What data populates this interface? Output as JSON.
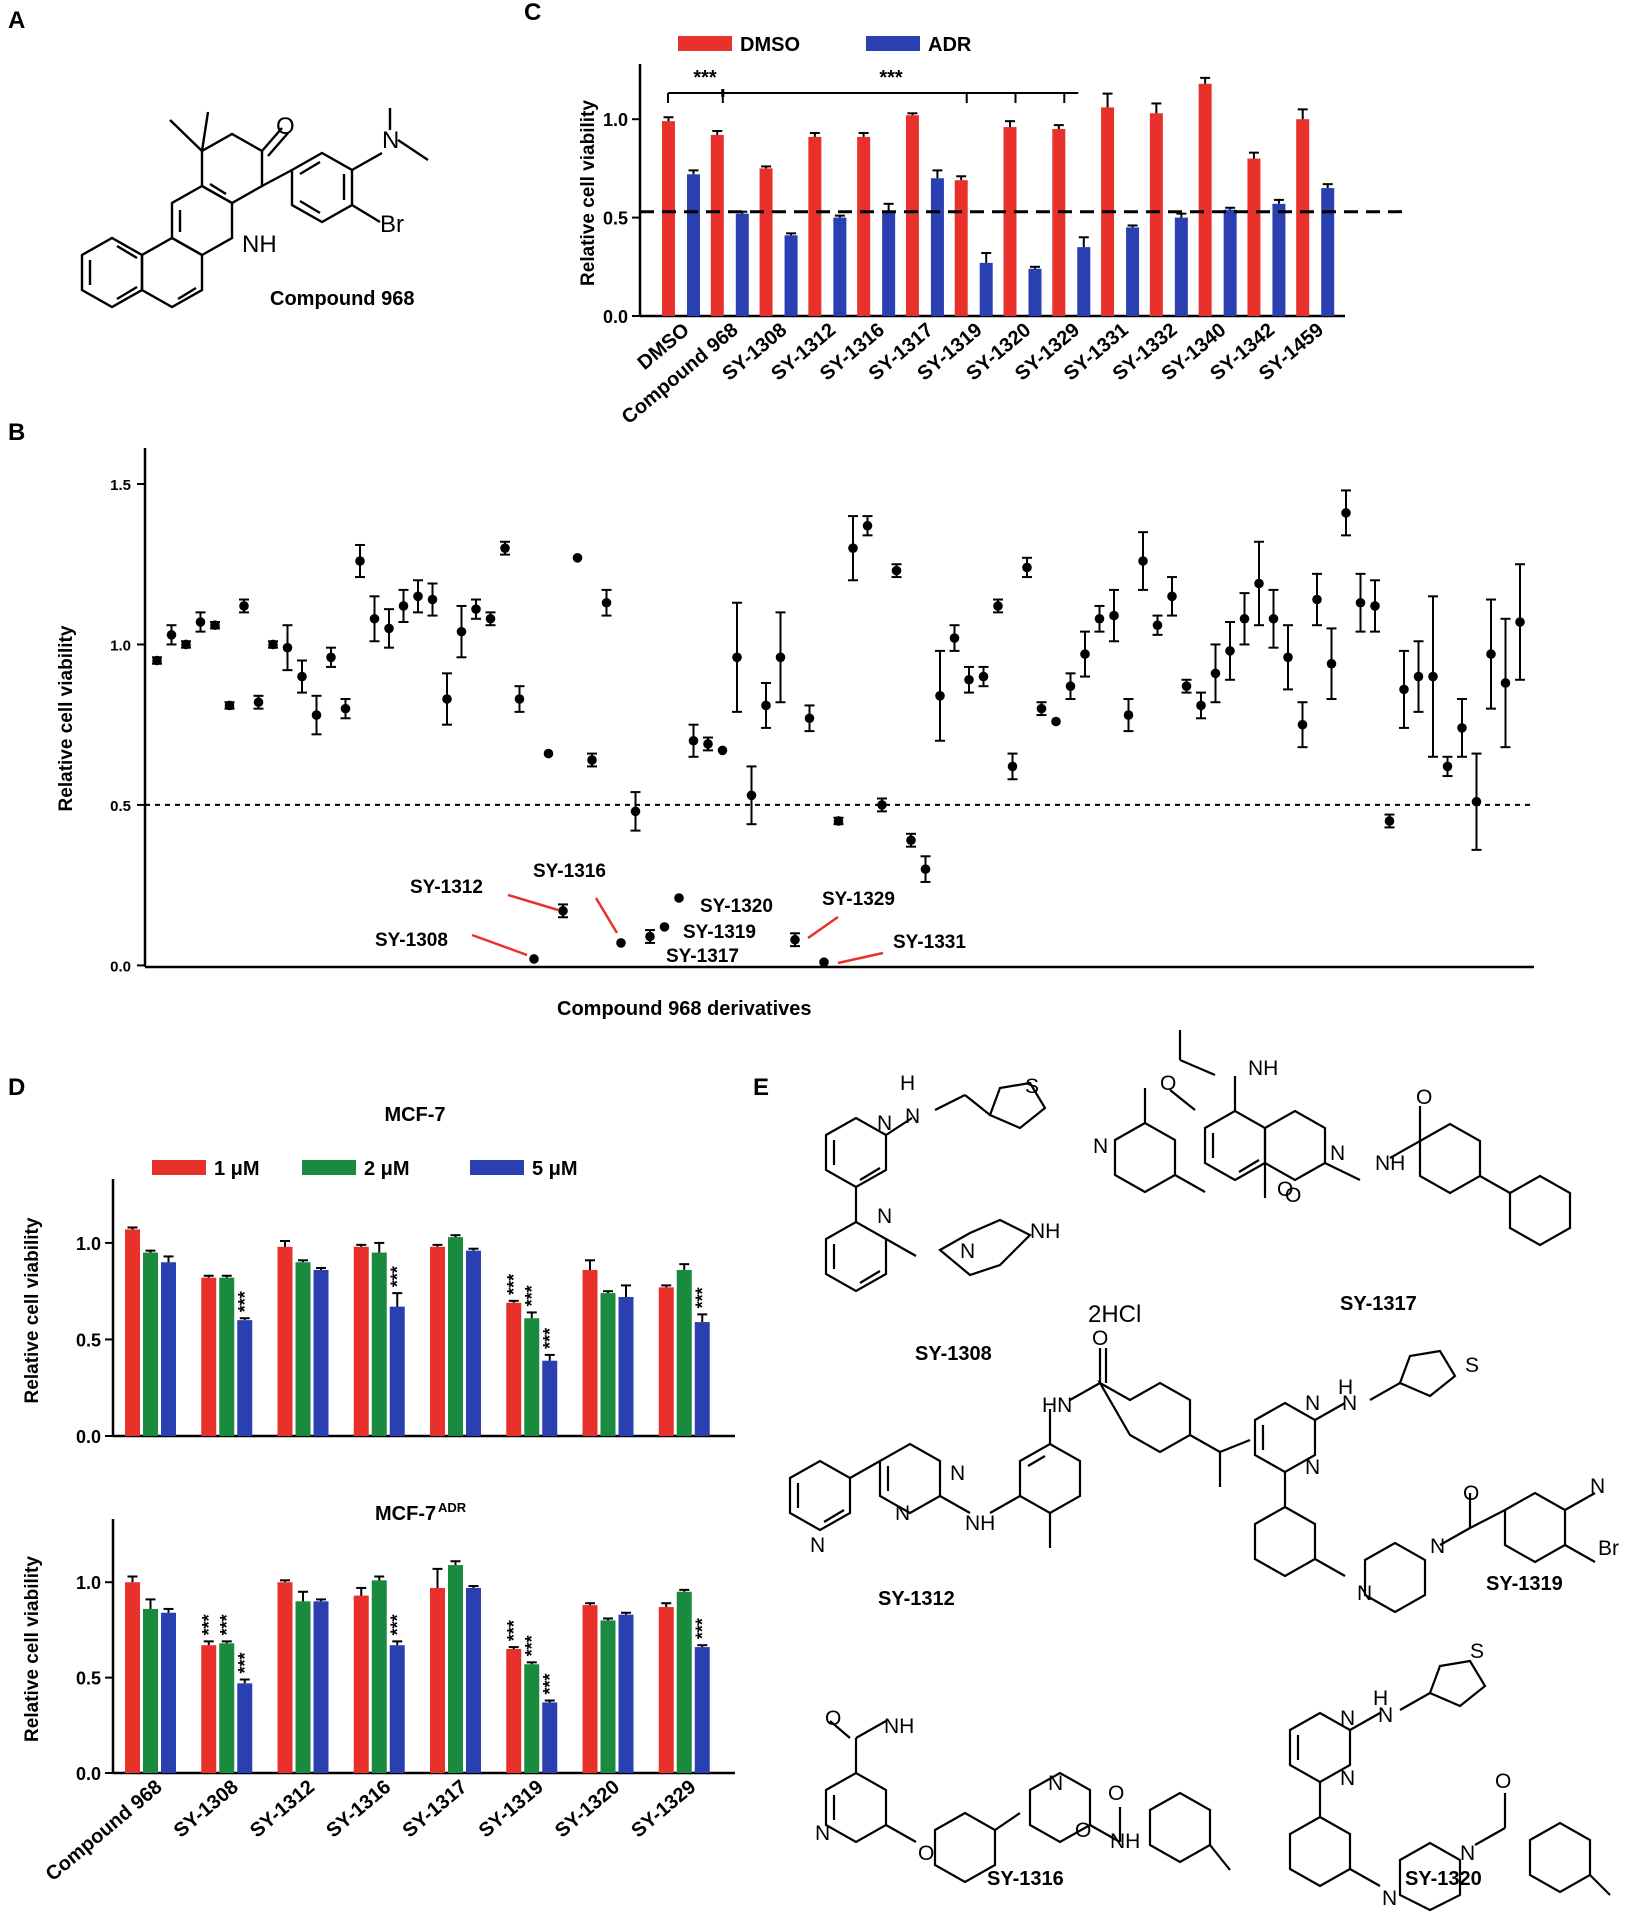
{
  "panels": {
    "A": {
      "letter": "A",
      "caption": "Compound 968",
      "atoms": [
        "O",
        "N",
        "Br",
        "NH"
      ]
    },
    "B": {
      "letter": "B",
      "caption": "Compound 968 derivatives",
      "callouts": [
        "SY-1308",
        "SY-1312",
        "SY-1316",
        "SY-1317",
        "SY-1319",
        "SY-1320",
        "SY-1329",
        "SY-1331"
      ]
    },
    "C": {
      "letter": "C"
    },
    "D": {
      "letter": "D",
      "legend": [
        "1 μM",
        "2 μM",
        "5 μM"
      ]
    },
    "E": {
      "letter": "E",
      "salt": "2HCl",
      "compounds": [
        "SY-1308",
        "SY-1317",
        "SY-1312",
        "SY-1319",
        "SY-1316",
        "SY-1320"
      ],
      "atoms": [
        "N",
        "NH",
        "S",
        "O",
        "H",
        "Br",
        "HN"
      ]
    }
  },
  "chart_data": [
    {
      "id": "B",
      "type": "scatter",
      "xlabel": "Compound 968 derivatives",
      "ylabel": "Relative cell viability",
      "ylim": [
        0,
        1.5
      ],
      "yticks": [
        "0.0",
        "0.5",
        "1.0",
        "1.5"
      ],
      "reference_line": 0.5,
      "points": [
        [
          1,
          0.95,
          0.01
        ],
        [
          2,
          1.03,
          0.03
        ],
        [
          3,
          1.0,
          0.01
        ],
        [
          4,
          1.07,
          0.03
        ],
        [
          5,
          1.06,
          0.01
        ],
        [
          6,
          0.81,
          0.01
        ],
        [
          7,
          1.12,
          0.02
        ],
        [
          8,
          0.82,
          0.02
        ],
        [
          9,
          1.0,
          0.01
        ],
        [
          10,
          0.99,
          0.07
        ],
        [
          11,
          0.9,
          0.05
        ],
        [
          12,
          0.78,
          0.06
        ],
        [
          13,
          0.96,
          0.03
        ],
        [
          14,
          0.8,
          0.03
        ],
        [
          15,
          1.26,
          0.05
        ],
        [
          16,
          1.08,
          0.07
        ],
        [
          17,
          1.05,
          0.06
        ],
        [
          18,
          1.12,
          0.05
        ],
        [
          19,
          1.15,
          0.05
        ],
        [
          20,
          1.14,
          0.05
        ],
        [
          21,
          0.83,
          0.08
        ],
        [
          22,
          1.04,
          0.08
        ],
        [
          23,
          1.11,
          0.03
        ],
        [
          24,
          1.08,
          0.02
        ],
        [
          25,
          1.3,
          0.02
        ],
        [
          26,
          0.83,
          0.04
        ],
        [
          27,
          0.02,
          0.0
        ],
        [
          28,
          0.66,
          0.0
        ],
        [
          29,
          0.17,
          0.02
        ],
        [
          30,
          1.27,
          0.0
        ],
        [
          31,
          0.64,
          0.02
        ],
        [
          32,
          1.13,
          0.04
        ],
        [
          33,
          0.07,
          0.0
        ],
        [
          34,
          0.48,
          0.06
        ],
        [
          35,
          0.09,
          0.02
        ],
        [
          36,
          0.12,
          0.0
        ],
        [
          37,
          0.21,
          0.0
        ],
        [
          38,
          0.7,
          0.05
        ],
        [
          39,
          0.69,
          0.02
        ],
        [
          40,
          0.67,
          0.0
        ],
        [
          41,
          0.96,
          0.17
        ],
        [
          42,
          0.53,
          0.09
        ],
        [
          43,
          0.81,
          0.07
        ],
        [
          44,
          0.96,
          0.14
        ],
        [
          45,
          0.08,
          0.02
        ],
        [
          46,
          0.77,
          0.04
        ],
        [
          47,
          0.01,
          0.0
        ],
        [
          48,
          0.45,
          0.01
        ],
        [
          49,
          1.3,
          0.1
        ],
        [
          50,
          1.37,
          0.03
        ],
        [
          51,
          0.5,
          0.02
        ],
        [
          52,
          1.23,
          0.02
        ],
        [
          53,
          0.39,
          0.02
        ],
        [
          54,
          0.3,
          0.04
        ],
        [
          55,
          0.84,
          0.14
        ],
        [
          56,
          1.02,
          0.04
        ],
        [
          57,
          0.89,
          0.04
        ],
        [
          58,
          0.9,
          0.03
        ],
        [
          59,
          1.12,
          0.02
        ],
        [
          60,
          0.62,
          0.04
        ],
        [
          61,
          1.24,
          0.03
        ],
        [
          62,
          0.8,
          0.02
        ],
        [
          63,
          0.76,
          0.0
        ],
        [
          64,
          0.87,
          0.04
        ],
        [
          65,
          0.97,
          0.07
        ],
        [
          66,
          1.08,
          0.04
        ],
        [
          67,
          1.09,
          0.08
        ],
        [
          68,
          0.78,
          0.05
        ],
        [
          69,
          1.26,
          0.09
        ],
        [
          70,
          1.06,
          0.03
        ],
        [
          71,
          1.15,
          0.06
        ],
        [
          72,
          0.87,
          0.02
        ],
        [
          73,
          0.81,
          0.04
        ],
        [
          74,
          0.91,
          0.09
        ],
        [
          75,
          0.98,
          0.09
        ],
        [
          76,
          1.08,
          0.08
        ],
        [
          77,
          1.19,
          0.13
        ],
        [
          78,
          1.08,
          0.09
        ],
        [
          79,
          0.96,
          0.1
        ],
        [
          80,
          0.75,
          0.07
        ],
        [
          81,
          1.14,
          0.08
        ],
        [
          82,
          0.94,
          0.11
        ],
        [
          83,
          1.41,
          0.07
        ],
        [
          84,
          1.13,
          0.09
        ],
        [
          85,
          1.12,
          0.08
        ],
        [
          86,
          0.45,
          0.02
        ],
        [
          87,
          0.86,
          0.12
        ],
        [
          88,
          0.9,
          0.11
        ],
        [
          89,
          0.9,
          0.25
        ],
        [
          90,
          0.62,
          0.03
        ],
        [
          91,
          0.74,
          0.09
        ],
        [
          92,
          0.51,
          0.15
        ],
        [
          93,
          0.97,
          0.17
        ],
        [
          94,
          0.88,
          0.2
        ],
        [
          95,
          1.07,
          0.18
        ]
      ]
    },
    {
      "id": "C",
      "type": "bar",
      "ylabel": "Relative cell viability",
      "ylim": [
        0,
        1.25
      ],
      "yticks": [
        "0.0",
        "0.5",
        "1.0"
      ],
      "reference_line": 0.53,
      "categories": [
        "DMSO",
        "Compound 968",
        "SY-1308",
        "SY-1312",
        "SY-1316",
        "SY-1317",
        "SY-1319",
        "SY-1320",
        "SY-1329",
        "SY-1331",
        "SY-1332",
        "SY-1340",
        "SY-1342",
        "SY-1459"
      ],
      "series": [
        {
          "name": "DMSO",
          "color": "#e8312b",
          "values": [
            0.99,
            0.92,
            0.75,
            0.91,
            0.91,
            1.02,
            0.69,
            0.96,
            0.95,
            1.06,
            1.03,
            1.18,
            0.8,
            1.0
          ],
          "errors": [
            0.02,
            0.02,
            0.01,
            0.02,
            0.02,
            0.01,
            0.02,
            0.03,
            0.02,
            0.07,
            0.05,
            0.03,
            0.03,
            0.05
          ]
        },
        {
          "name": "ADR",
          "color": "#2a3fb0",
          "values": [
            0.72,
            0.52,
            0.41,
            0.5,
            0.53,
            0.7,
            0.27,
            0.24,
            0.35,
            0.45,
            0.5,
            0.54,
            0.57,
            0.65
          ],
          "errors": [
            0.02,
            0.01,
            0.01,
            0.01,
            0.04,
            0.04,
            0.05,
            0.01,
            0.05,
            0.01,
            0.02,
            0.01,
            0.02,
            0.02
          ]
        }
      ],
      "annotations": [
        "***",
        "***"
      ]
    },
    {
      "id": "D1",
      "type": "bar",
      "title": "MCF-7",
      "ylabel": "Relative cell viability",
      "ylim": [
        0,
        1.3
      ],
      "yticks": [
        "0.0",
        "0.5",
        "1.0"
      ],
      "categories": [
        "Compound 968",
        "SY-1308",
        "SY-1312",
        "SY-1316",
        "SY-1317",
        "SY-1319",
        "SY-1320",
        "SY-1329"
      ],
      "series": [
        {
          "name": "1 μM",
          "color": "#e8312b",
          "values": [
            1.07,
            0.82,
            0.98,
            0.98,
            0.98,
            0.69,
            0.86,
            0.77
          ],
          "errors": [
            0.01,
            0.01,
            0.03,
            0.01,
            0.01,
            0.01,
            0.05,
            0.01
          ],
          "stars": [
            "",
            "",
            "",
            "",
            "",
            "***",
            "",
            ""
          ]
        },
        {
          "name": "2 μM",
          "color": "#1a8a3e",
          "values": [
            0.95,
            0.82,
            0.9,
            0.95,
            1.03,
            0.61,
            0.74,
            0.86
          ],
          "errors": [
            0.01,
            0.01,
            0.01,
            0.05,
            0.01,
            0.03,
            0.01,
            0.03
          ],
          "stars": [
            "",
            "",
            "",
            "",
            "",
            "***",
            "",
            ""
          ]
        },
        {
          "name": "5 μM",
          "color": "#2a3fb0",
          "values": [
            0.9,
            0.6,
            0.86,
            0.67,
            0.96,
            0.39,
            0.72,
            0.59
          ],
          "errors": [
            0.03,
            0.01,
            0.01,
            0.07,
            0.01,
            0.03,
            0.06,
            0.04
          ],
          "stars": [
            "",
            "***",
            "",
            "***",
            "",
            "***",
            "",
            "***"
          ]
        }
      ]
    },
    {
      "id": "D2",
      "type": "bar",
      "title": "MCF-7",
      "title_superscript": "ADR",
      "ylabel": "Relative cell viability",
      "ylim": [
        0,
        1.3
      ],
      "yticks": [
        "0.0",
        "0.5",
        "1.0"
      ],
      "categories": [
        "Compound 968",
        "SY-1308",
        "SY-1312",
        "SY-1316",
        "SY-1317",
        "SY-1319",
        "SY-1320",
        "SY-1329"
      ],
      "series": [
        {
          "name": "1 μM",
          "color": "#e8312b",
          "values": [
            1.0,
            0.67,
            1.0,
            0.93,
            0.97,
            0.65,
            0.88,
            0.87
          ],
          "errors": [
            0.03,
            0.02,
            0.01,
            0.04,
            0.1,
            0.01,
            0.01,
            0.02
          ],
          "stars": [
            "",
            "***",
            "",
            "",
            "",
            "***",
            "",
            ""
          ]
        },
        {
          "name": "2 μM",
          "color": "#1a8a3e",
          "values": [
            0.86,
            0.68,
            0.9,
            1.01,
            1.09,
            0.57,
            0.8,
            0.95
          ],
          "errors": [
            0.05,
            0.01,
            0.05,
            0.02,
            0.02,
            0.01,
            0.01,
            0.01
          ],
          "stars": [
            "",
            "***",
            "",
            "",
            "",
            "***",
            "",
            ""
          ]
        },
        {
          "name": "5 μM",
          "color": "#2a3fb0",
          "values": [
            0.84,
            0.47,
            0.9,
            0.67,
            0.97,
            0.37,
            0.83,
            0.66
          ],
          "errors": [
            0.02,
            0.02,
            0.01,
            0.02,
            0.01,
            0.01,
            0.01,
            0.01
          ],
          "stars": [
            "",
            "***",
            "",
            "***",
            "",
            "***",
            "",
            "***"
          ]
        }
      ]
    }
  ]
}
